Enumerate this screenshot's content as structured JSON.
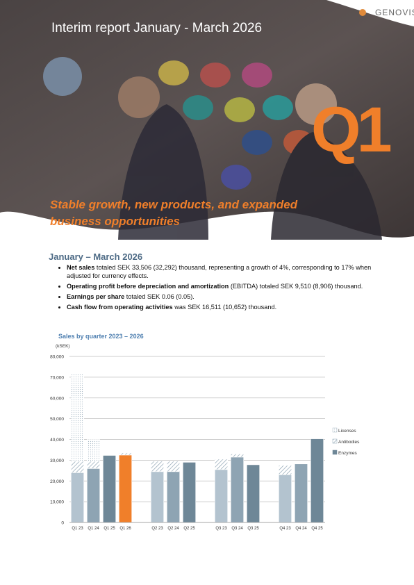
{
  "header": {
    "title": "Interim report January - March 2026",
    "logo": "GENOVIS",
    "badge": "Q1",
    "tagline": "Stable growth, new products, and expanded business opportunities"
  },
  "section": {
    "heading": "January – March 2026",
    "bullets": [
      {
        "bold": "Net sales",
        "text": " totaled SEK 33,506 (32,292) thousand, representing a growth of 4%, corresponding to 17% when adjusted for currency effects."
      },
      {
        "bold": "Operating profit before depreciation and amortization",
        "text": " (EBITDA) totaled SEK 9,510 (8,906) thousand."
      },
      {
        "bold": "Earnings per share",
        "text": " totaled SEK 0.06 (0.05)."
      },
      {
        "bold": "Cash flow from operating activities",
        "text": " was SEK 16,511 (10,652) thousand."
      }
    ]
  },
  "chart_data": {
    "type": "stacked_bar",
    "title": "Sales by quarter 2023 – 2026",
    "y_label": "(kSEK)",
    "categories": [
      "Q1 23",
      "Q1 24",
      "Q1 25",
      "Q1 26",
      null,
      "Q2 23",
      "Q2 24",
      "Q2 25",
      null,
      "Q3 23",
      "Q3 24",
      "Q3 25",
      null,
      "Q4 23",
      "Q4 24",
      "Q4 25"
    ],
    "category_colors": [
      "#b3c3cf",
      "#8ea4b3",
      "#6e8797",
      "#f07f2a",
      null,
      "#b3c3cf",
      "#8ea4b3",
      "#6e8797",
      null,
      "#b3c3cf",
      "#8ea4b3",
      "#6e8797",
      null,
      "#b3c3cf",
      "#8ea4b3",
      "#6e8797"
    ],
    "series": [
      {
        "name": "Enzymes",
        "color": "#6e8797",
        "values": [
          24000,
          26000,
          32300,
          32500,
          null,
          24500,
          24500,
          29000,
          null,
          25500,
          31500,
          27800,
          null,
          23000,
          28200,
          40300
        ]
      },
      {
        "name": "Antibodies",
        "color": "#8ea4b3",
        "values": [
          5500,
          3500,
          0,
          1000,
          null,
          5000,
          5000,
          0,
          null,
          5000,
          1500,
          0,
          null,
          4500,
          0,
          0
        ]
      },
      {
        "name": "Licenses",
        "color": "#a9b9c5",
        "values": [
          42000,
          10500,
          0,
          0,
          null,
          0,
          0,
          0,
          null,
          0,
          0,
          0,
          null,
          0,
          0,
          0
        ]
      }
    ],
    "ylim": [
      0,
      80000
    ],
    "yticks": [
      0,
      {
        "value": 10000,
        "label": "10,000"
      },
      {
        "value": 20000,
        "label": "20,000"
      },
      {
        "value": 30000,
        "label": "30,000"
      },
      {
        "value": 40000,
        "label": "40,000"
      },
      {
        "value": 50000,
        "label": "50,000"
      },
      {
        "value": 60000,
        "label": "60,000"
      },
      {
        "value": 70000,
        "label": "70,000"
      },
      {
        "value": 80000,
        "label": "80,000"
      }
    ],
    "grid": true,
    "legend": "right"
  }
}
